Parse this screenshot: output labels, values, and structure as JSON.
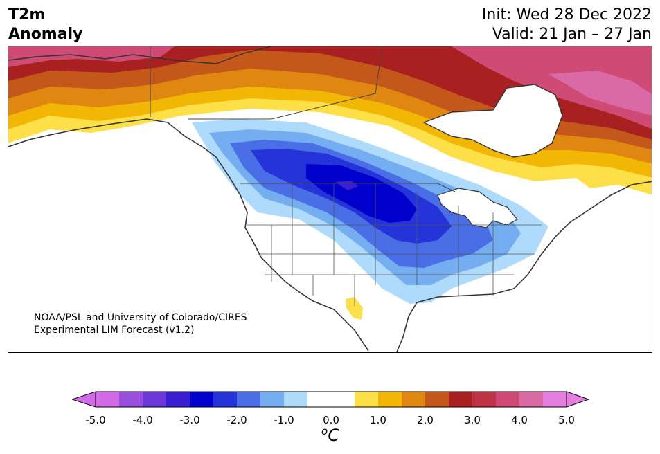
{
  "header": {
    "title_line1": "T2m",
    "title_line2": "Anomaly",
    "init_line": "Init: Wed 28 Dec 2022",
    "valid_line": "Valid: 21 Jan – 27 Jan"
  },
  "credit": {
    "line1": "NOAA/PSL and University of Colorado/CIRES",
    "line2": "Experimental LIM Forecast (v1.2)"
  },
  "colorbar": {
    "unit_base": "C",
    "unit_sup": "o",
    "ticks": [
      "-5.0",
      "-4.0",
      "-3.0",
      "-2.0",
      "-1.0",
      "0.0",
      "1.0",
      "2.0",
      "3.0",
      "4.0",
      "5.0"
    ],
    "min": -5.0,
    "max": 5.0,
    "step": 0.5,
    "colors": [
      "#d36ae8",
      "#9a4fdc",
      "#6a38d8",
      "#3a1fd0",
      "#0000cc",
      "#2534d8",
      "#4a6ee6",
      "#74aef0",
      "#aedafb",
      "#ffffff",
      "#ffffff",
      "#fde047",
      "#f2b705",
      "#e08712",
      "#c4581a",
      "#a8201f",
      "#bf3347",
      "#cf4a74",
      "#d96aa6",
      "#e67ee0"
    ],
    "under_color": "#d36ae8",
    "over_color": "#e67ee0"
  }
}
